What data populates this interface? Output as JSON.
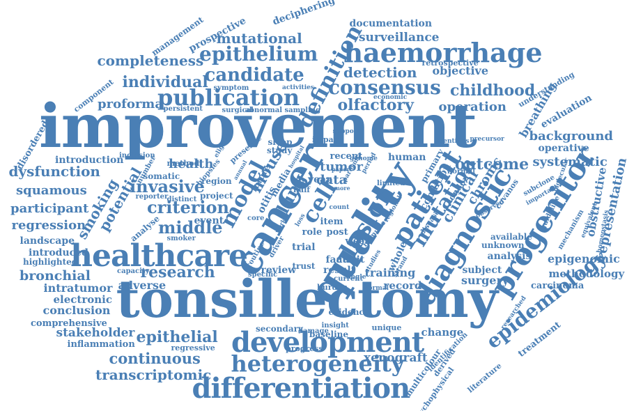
{
  "color": "#4a7fb5",
  "words": [
    "improvement",
    "tonsillectomy",
    "healthcare",
    "quality",
    "cancer",
    "development",
    "haemorrhage",
    "progenitor",
    "diagnostic",
    "differentiation",
    "heterogeneity",
    "epithelium",
    "publication",
    "candidate",
    "consensus",
    "patient",
    "definition",
    "lesion",
    "cell",
    "epidemiology",
    "individual",
    "completeness",
    "mutational",
    "detection",
    "surveillance",
    "documentation",
    "olfactory",
    "childhood",
    "criterion",
    "invasive",
    "dysfunction",
    "squamous",
    "participant",
    "regression",
    "middle",
    "research",
    "bronchial",
    "epithelial",
    "continuous",
    "transcriptomic",
    "stakeholder",
    "conclusion",
    "electronic",
    "intratumor",
    "adverse",
    "landscape",
    "smoking",
    "potential",
    "model",
    "mouse",
    "lung",
    "data",
    "tumor",
    "outcome",
    "systematic",
    "background",
    "operative",
    "evaluation",
    "mutation",
    "clinical",
    "chronic",
    "obstructive",
    "representation",
    "epigenomic",
    "methodology",
    "carcinoma",
    "surgery",
    "subject",
    "training",
    "record",
    "xenograft",
    "change",
    "review",
    "audit",
    "result",
    "factor",
    "trial",
    "week",
    "role",
    "post",
    "item",
    "year",
    "proforma",
    "operation",
    "objective",
    "retrospective",
    "introduction",
    "health",
    "prospective",
    "management",
    "deciphering",
    "disordered",
    "component",
    "symptom",
    "persistent",
    "surgical",
    "abnormal sampling",
    "activities",
    "economic",
    "identifies",
    "precursor",
    "breathing",
    "understanding",
    "homeostasis",
    "mechanism",
    "equivalent",
    "guideline",
    "available",
    "unknown",
    "analysis",
    "london",
    "primary",
    "human",
    "recent",
    "impact",
    "support",
    "parosmia",
    "study",
    "sleep",
    "otitis",
    "media",
    "future",
    "inclusion",
    "number",
    "method",
    "somatic",
    "biopsies",
    "region",
    "distinct",
    "project",
    "reporter",
    "event",
    "smoker",
    "introduced",
    "highlighted",
    "capacity",
    "analyse",
    "core",
    "routine",
    "driver",
    "trust",
    "specific",
    "evidence",
    "baseline",
    "insight",
    "damage",
    "burden",
    "current",
    "single",
    "normal",
    "unique",
    "secondary",
    "progress",
    "regressive",
    "inflammation",
    "comprehensive",
    "psychophysical",
    "multicolour",
    "literature",
    "identification",
    "derived",
    "treatment",
    "researched",
    "molecular",
    "subclone",
    "important",
    "covanos",
    "observed",
    "disease",
    "condition",
    "immune",
    "whole",
    "regional",
    "limited",
    "more",
    "paper",
    "count",
    "loss",
    "half",
    "work",
    "eligible",
    "presence",
    "annual",
    "hospital",
    "period",
    "genome",
    "strand",
    "studies",
    "normal",
    "measure"
  ]
}
